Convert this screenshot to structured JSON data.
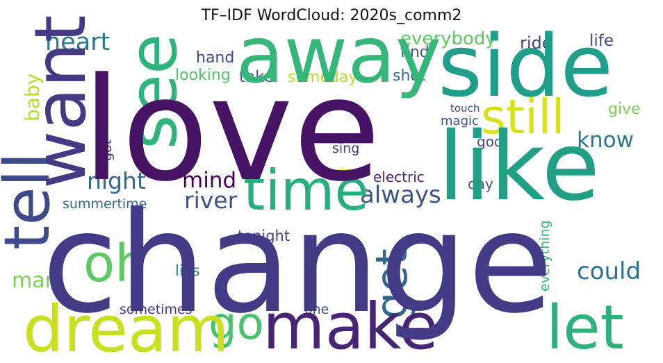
{
  "chart_data": {
    "type": "wordcloud",
    "title": "TF–IDF WordCloud: 2020s_comm2",
    "palette": "viridis",
    "words": [
      {
        "text": "love",
        "weight": 1.0,
        "color": "#471365",
        "orientation": "horizontal"
      },
      {
        "text": "change",
        "weight": 0.98,
        "color": "#433b85",
        "orientation": "horizontal"
      },
      {
        "text": "like",
        "weight": 0.66,
        "color": "#21a085",
        "orientation": "horizontal"
      },
      {
        "text": "side",
        "weight": 0.6,
        "color": "#1f9e89",
        "orientation": "horizontal"
      },
      {
        "text": "away",
        "weight": 0.55,
        "color": "#35b779",
        "orientation": "horizontal"
      },
      {
        "text": "want",
        "weight": 0.5,
        "color": "#443983",
        "orientation": "vertical"
      },
      {
        "text": "see",
        "weight": 0.46,
        "color": "#2eb37c",
        "orientation": "vertical"
      },
      {
        "text": "tell",
        "weight": 0.45,
        "color": "#3e4a89",
        "orientation": "vertical"
      },
      {
        "text": "dream",
        "weight": 0.45,
        "color": "#c8e020",
        "orientation": "horizontal"
      },
      {
        "text": "make",
        "weight": 0.45,
        "color": "#482475",
        "orientation": "horizontal"
      },
      {
        "text": "let",
        "weight": 0.42,
        "color": "#2db27d",
        "orientation": "horizontal"
      },
      {
        "text": "time",
        "weight": 0.4,
        "color": "#28ae80",
        "orientation": "horizontal"
      },
      {
        "text": "oh",
        "weight": 0.36,
        "color": "#5ec962",
        "orientation": "horizontal"
      },
      {
        "text": "still",
        "weight": 0.34,
        "color": "#d8e219",
        "orientation": "horizontal"
      },
      {
        "text": "go",
        "weight": 0.32,
        "color": "#4ac16d",
        "orientation": "horizontal"
      },
      {
        "text": "get",
        "weight": 0.3,
        "color": "#31688e",
        "orientation": "vertical"
      },
      {
        "text": "heart",
        "weight": 0.17,
        "color": "#2a788e",
        "orientation": "horizontal"
      },
      {
        "text": "always",
        "weight": 0.17,
        "color": "#3b528b",
        "orientation": "horizontal"
      },
      {
        "text": "could",
        "weight": 0.17,
        "color": "#2c728e",
        "orientation": "horizontal"
      },
      {
        "text": "night",
        "weight": 0.16,
        "color": "#31688e",
        "orientation": "horizontal"
      },
      {
        "text": "river",
        "weight": 0.16,
        "color": "#3b528b",
        "orientation": "horizontal"
      },
      {
        "text": "mind",
        "weight": 0.15,
        "color": "#440154",
        "orientation": "horizontal"
      },
      {
        "text": "know",
        "weight": 0.15,
        "color": "#2a788e",
        "orientation": "horizontal"
      },
      {
        "text": "man",
        "weight": 0.15,
        "color": "#7ad151",
        "orientation": "horizontal"
      },
      {
        "text": "baby",
        "weight": 0.14,
        "color": "#b5de2b",
        "orientation": "vertical"
      },
      {
        "text": "everybody",
        "weight": 0.13,
        "color": "#5ec962",
        "orientation": "horizontal"
      },
      {
        "text": "ride",
        "weight": 0.12,
        "color": "#414487",
        "orientation": "horizontal"
      },
      {
        "text": "life",
        "weight": 0.11,
        "color": "#3e4989",
        "orientation": "horizontal"
      },
      {
        "text": "hand",
        "weight": 0.11,
        "color": "#3e4989",
        "orientation": "horizontal"
      },
      {
        "text": "find",
        "weight": 0.11,
        "color": "#3b528b",
        "orientation": "horizontal"
      },
      {
        "text": "looking",
        "weight": 0.11,
        "color": "#52c569",
        "orientation": "horizontal"
      },
      {
        "text": "take",
        "weight": 0.11,
        "color": "#33638d",
        "orientation": "horizontal"
      },
      {
        "text": "someday",
        "weight": 0.11,
        "color": "#b5de2b",
        "orientation": "horizontal"
      },
      {
        "text": "shot",
        "weight": 0.11,
        "color": "#2e6e8e",
        "orientation": "horizontal"
      },
      {
        "text": "give",
        "weight": 0.11,
        "color": "#7ad151",
        "orientation": "horizontal"
      },
      {
        "text": "touch",
        "weight": 0.07,
        "color": "#3e4989",
        "orientation": "horizontal"
      },
      {
        "text": "magic",
        "weight": 0.09,
        "color": "#3b528b",
        "orientation": "horizontal"
      },
      {
        "text": "god",
        "weight": 0.1,
        "color": "#3e4989",
        "orientation": "horizontal"
      },
      {
        "text": "got",
        "weight": 0.09,
        "color": "#46337e",
        "orientation": "vertical"
      },
      {
        "text": "sing",
        "weight": 0.1,
        "color": "#443a83",
        "orientation": "horizontal"
      },
      {
        "text": "sadness",
        "weight": 0.09,
        "color": "#fde725",
        "orientation": "horizontal"
      },
      {
        "text": "electric",
        "weight": 0.1,
        "color": "#482878",
        "orientation": "horizontal"
      },
      {
        "text": "day",
        "weight": 0.1,
        "color": "#3b528b",
        "orientation": "horizontal"
      },
      {
        "text": "summertime",
        "weight": 0.1,
        "color": "#31688e",
        "orientation": "horizontal"
      },
      {
        "text": "everything",
        "weight": 0.1,
        "color": "#35b779",
        "orientation": "vertical"
      },
      {
        "text": "tonight",
        "weight": 0.11,
        "color": "#414487",
        "orientation": "horizontal"
      },
      {
        "text": "body",
        "weight": 0.1,
        "color": "#287c8e",
        "orientation": "vertical"
      },
      {
        "text": "lies",
        "weight": 0.11,
        "color": "#26828e",
        "orientation": "horizontal"
      },
      {
        "text": "sometimes",
        "weight": 0.1,
        "color": "#46327e",
        "orientation": "horizontal"
      },
      {
        "text": "one",
        "weight": 0.09,
        "color": "#3b528b",
        "orientation": "horizontal"
      }
    ]
  }
}
